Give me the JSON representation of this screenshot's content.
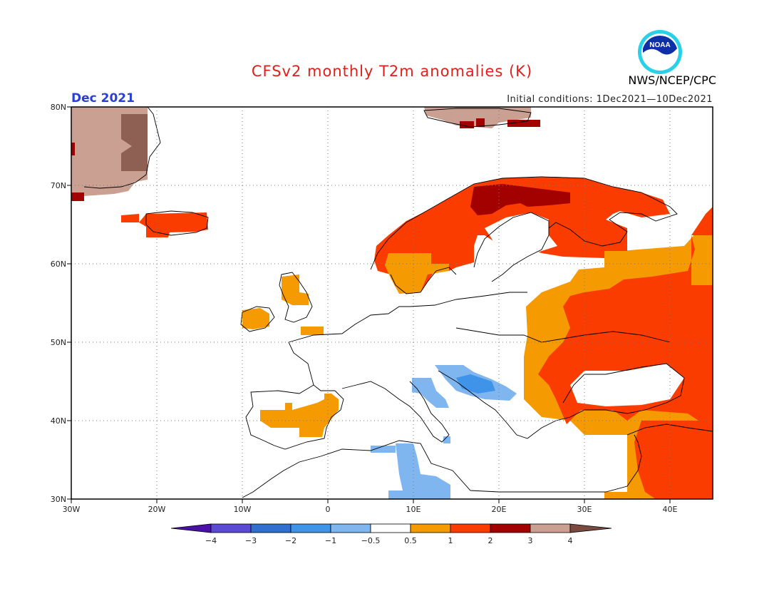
{
  "header": {
    "title": "CFSv2 monthly T2m anomalies (K)",
    "month": "Dec 2021",
    "initial_conditions": "Initial conditions: 1Dec2021—10Dec2021",
    "agency": "NWS/NCEP/CPC",
    "logo_text": "NOAA"
  },
  "map": {
    "lon_range": [
      -30,
      45
    ],
    "lat_range": [
      30,
      80
    ],
    "lon_ticks": [
      "30W",
      "20W",
      "10W",
      "0",
      "10E",
      "20E",
      "30E",
      "40E"
    ],
    "lat_ticks": [
      "30N",
      "40N",
      "50N",
      "60N",
      "70N",
      "80N"
    ],
    "grid": "dotted"
  },
  "legend": {
    "labels": [
      "−4",
      "−3",
      "−2",
      "−1",
      "−0.5",
      "0.5",
      "1",
      "2",
      "3",
      "4"
    ],
    "colors": [
      "#4b10a8",
      "#5a4ad6",
      "#2f6fd0",
      "#3f93e8",
      "#7fb6ef",
      "#ffffff",
      "#f59a00",
      "#fb3c00",
      "#a30000",
      "#c9a092",
      "#7a4a3e"
    ]
  },
  "anomaly_regions": [
    {
      "name": "greenland",
      "color": "#c9a092"
    },
    {
      "name": "scandinavia",
      "color": "#fb3c00"
    },
    {
      "name": "north-cape",
      "color": "#a30000"
    },
    {
      "name": "eastern-europe",
      "color": "#fb3c00"
    },
    {
      "name": "middle-east",
      "color": "#fb3c00"
    },
    {
      "name": "iberia",
      "color": "#f59a00"
    },
    {
      "name": "british-isles",
      "color": "#f59a00"
    },
    {
      "name": "balkans",
      "color": "#7fb6ef"
    },
    {
      "name": "italy",
      "color": "#7fb6ef"
    },
    {
      "name": "tunisia",
      "color": "#7fb6ef"
    }
  ]
}
